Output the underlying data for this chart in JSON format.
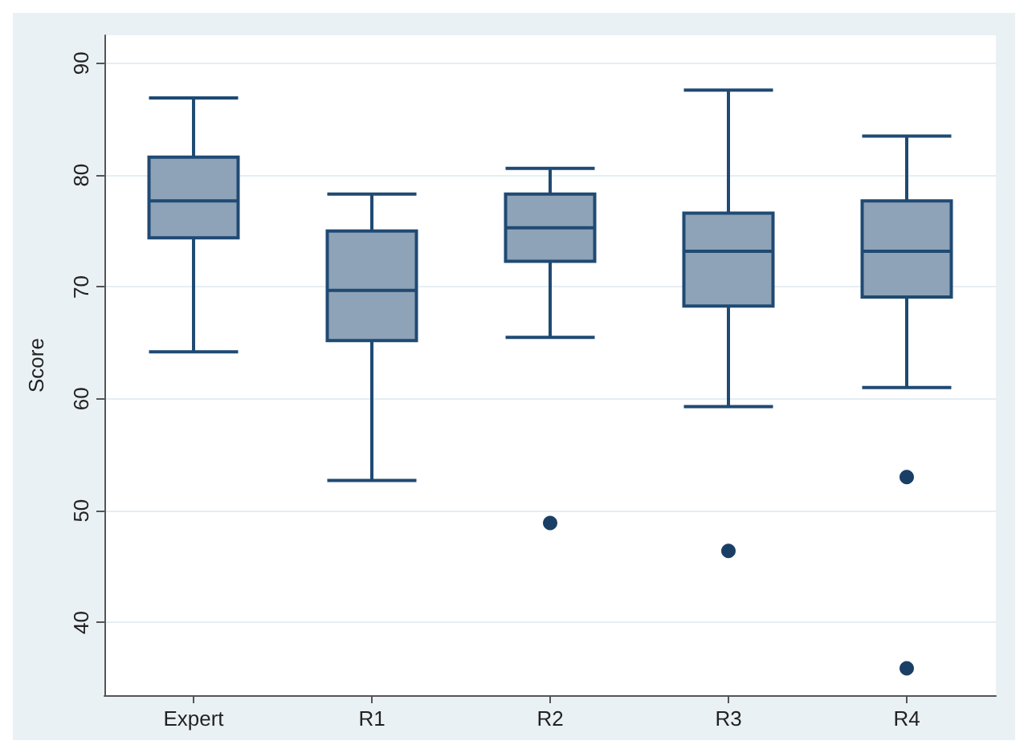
{
  "chart_data": {
    "type": "box",
    "ylabel": "Score",
    "categories": [
      "Expert",
      "R1",
      "R2",
      "R3",
      "R4"
    ],
    "color": "#8ea3b8",
    "boxes": [
      {
        "low": 64.2,
        "q1": 74.4,
        "median": 77.7,
        "q3": 81.6,
        "high": 86.9
      },
      {
        "low": 52.7,
        "q1": 65.2,
        "median": 69.7,
        "q3": 75.0,
        "high": 78.3
      },
      {
        "low": 65.5,
        "q1": 72.3,
        "median": 75.3,
        "q3": 78.3,
        "high": 80.6,
        "outliers": [
          48.9
        ]
      },
      {
        "low": 59.3,
        "q1": 68.3,
        "median": 73.2,
        "q3": 76.6,
        "high": 87.6,
        "outliers": [
          46.4
        ]
      },
      {
        "low": 61.0,
        "q1": 69.1,
        "median": 73.2,
        "q3": 77.7,
        "high": 83.5,
        "outliers": [
          53.0,
          35.9
        ]
      }
    ],
    "ylim": [
      33.5,
      92.5
    ],
    "yticks": [
      40,
      50,
      60,
      70,
      80,
      90
    ],
    "grid": "y"
  }
}
